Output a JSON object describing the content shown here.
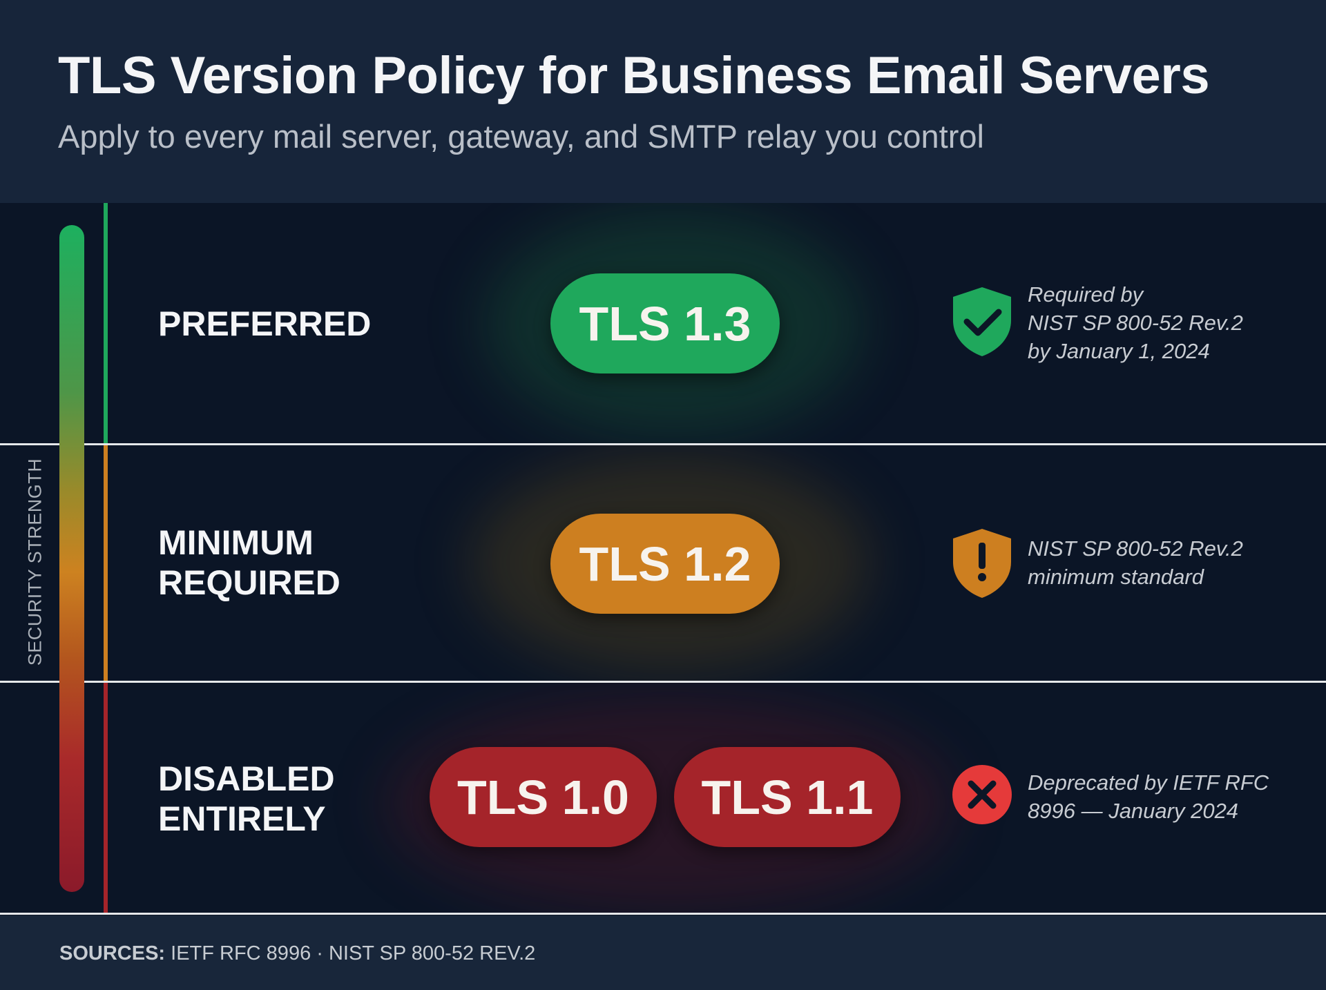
{
  "header": {
    "title": "TLS Version Policy for Business Email Servers",
    "subtitle": "Apply to every mail server, gateway, and SMTP relay you control"
  },
  "scale": {
    "label": "SECURITY STRENGTH",
    "colors": [
      "#1db05f",
      "#cd8220",
      "#8b1a2a"
    ]
  },
  "rows": [
    {
      "label_lines": [
        "PREFERRED"
      ],
      "color": "#1fa85c",
      "versions": [
        "TLS 1.3"
      ],
      "icon": "shield-check-icon",
      "note_lines": [
        "Required by",
        "NIST SP 800-52 Rev.2",
        "by January 1, 2024"
      ]
    },
    {
      "label_lines": [
        "MINIMUM",
        "REQUIRED"
      ],
      "color": "#cd7f20",
      "versions": [
        "TLS 1.2"
      ],
      "icon": "shield-exclamation-icon",
      "note_lines": [
        "NIST SP 800-52 Rev.2",
        "minimum standard"
      ]
    },
    {
      "label_lines": [
        "DISABLED",
        "ENTIRELY"
      ],
      "color": "#a5242a",
      "versions": [
        "TLS 1.0",
        "TLS 1.1"
      ],
      "icon": "x-circle-icon",
      "note_lines": [
        "Deprecated by IETF RFC",
        "8996 — January 2024"
      ]
    }
  ],
  "footer": {
    "label": "SOURCES:",
    "text": "IETF RFC 8996 · NIST SP 800-52 REV.2"
  }
}
